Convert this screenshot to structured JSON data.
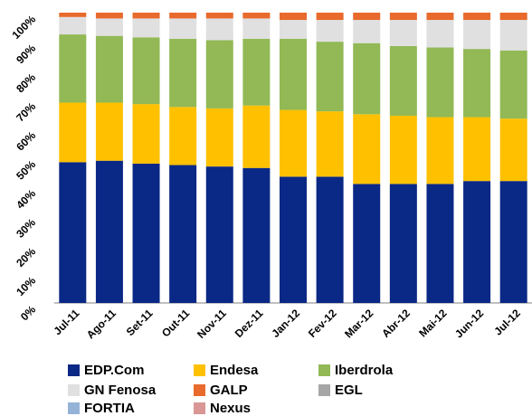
{
  "chart_data": {
    "type": "bar",
    "stacked": true,
    "percent": true,
    "categories": [
      "Jul-11",
      "Ago-11",
      "Set-11",
      "Out-11",
      "Nov-11",
      "Dez-11",
      "Jan-12",
      "Fev-12",
      "Mar-12",
      "Abr-12",
      "Mai-12",
      "Jun-12",
      "Jul-12"
    ],
    "ylim": [
      0,
      100
    ],
    "yticks": [
      "0%",
      "10%",
      "20%",
      "30%",
      "40%",
      "50%",
      "60%",
      "70%",
      "80%",
      "90%",
      "100%"
    ],
    "legend_position": "bottom",
    "series": [
      {
        "name": "EDP.Com",
        "color": "#0a2885",
        "values": [
          48.5,
          49,
          48,
          47.5,
          47,
          46.5,
          43.5,
          43.5,
          41,
          41,
          41,
          42,
          42
        ]
      },
      {
        "name": "Endesa",
        "color": "#ffc000",
        "values": [
          20.5,
          20,
          20.5,
          20,
          20,
          21.5,
          23,
          22.5,
          24,
          23.5,
          23,
          22,
          21.5
        ]
      },
      {
        "name": "Iberdrola",
        "color": "#92b955",
        "values": [
          23.5,
          23,
          23,
          23.5,
          23.5,
          23,
          24.5,
          24,
          24.5,
          24,
          24,
          23.5,
          23.5
        ]
      },
      {
        "name": "GN Fenosa",
        "color": "#e0e0e0",
        "values": [
          6,
          6,
          6.5,
          7,
          7.5,
          7,
          6.5,
          7.5,
          8,
          9,
          9.5,
          10,
          10.5
        ]
      },
      {
        "name": "GALP",
        "color": "#e86a2c",
        "values": [
          1.5,
          2,
          2,
          2,
          2,
          2,
          2.5,
          2.5,
          2.5,
          2.5,
          2.5,
          2.5,
          2.5
        ]
      },
      {
        "name": "EGL",
        "color": "#a6a6a6",
        "values": [
          0,
          0,
          0,
          0,
          0,
          0,
          0,
          0,
          0,
          0,
          0,
          0,
          0
        ]
      },
      {
        "name": "FORTIA",
        "color": "#95b3d7",
        "values": [
          0,
          0,
          0,
          0,
          0,
          0,
          0,
          0,
          0,
          0,
          0,
          0,
          0
        ]
      },
      {
        "name": "Nexus",
        "color": "#d99795",
        "values": [
          0,
          0,
          0,
          0,
          0,
          0,
          0,
          0,
          0,
          0,
          0,
          0,
          0
        ]
      }
    ]
  }
}
